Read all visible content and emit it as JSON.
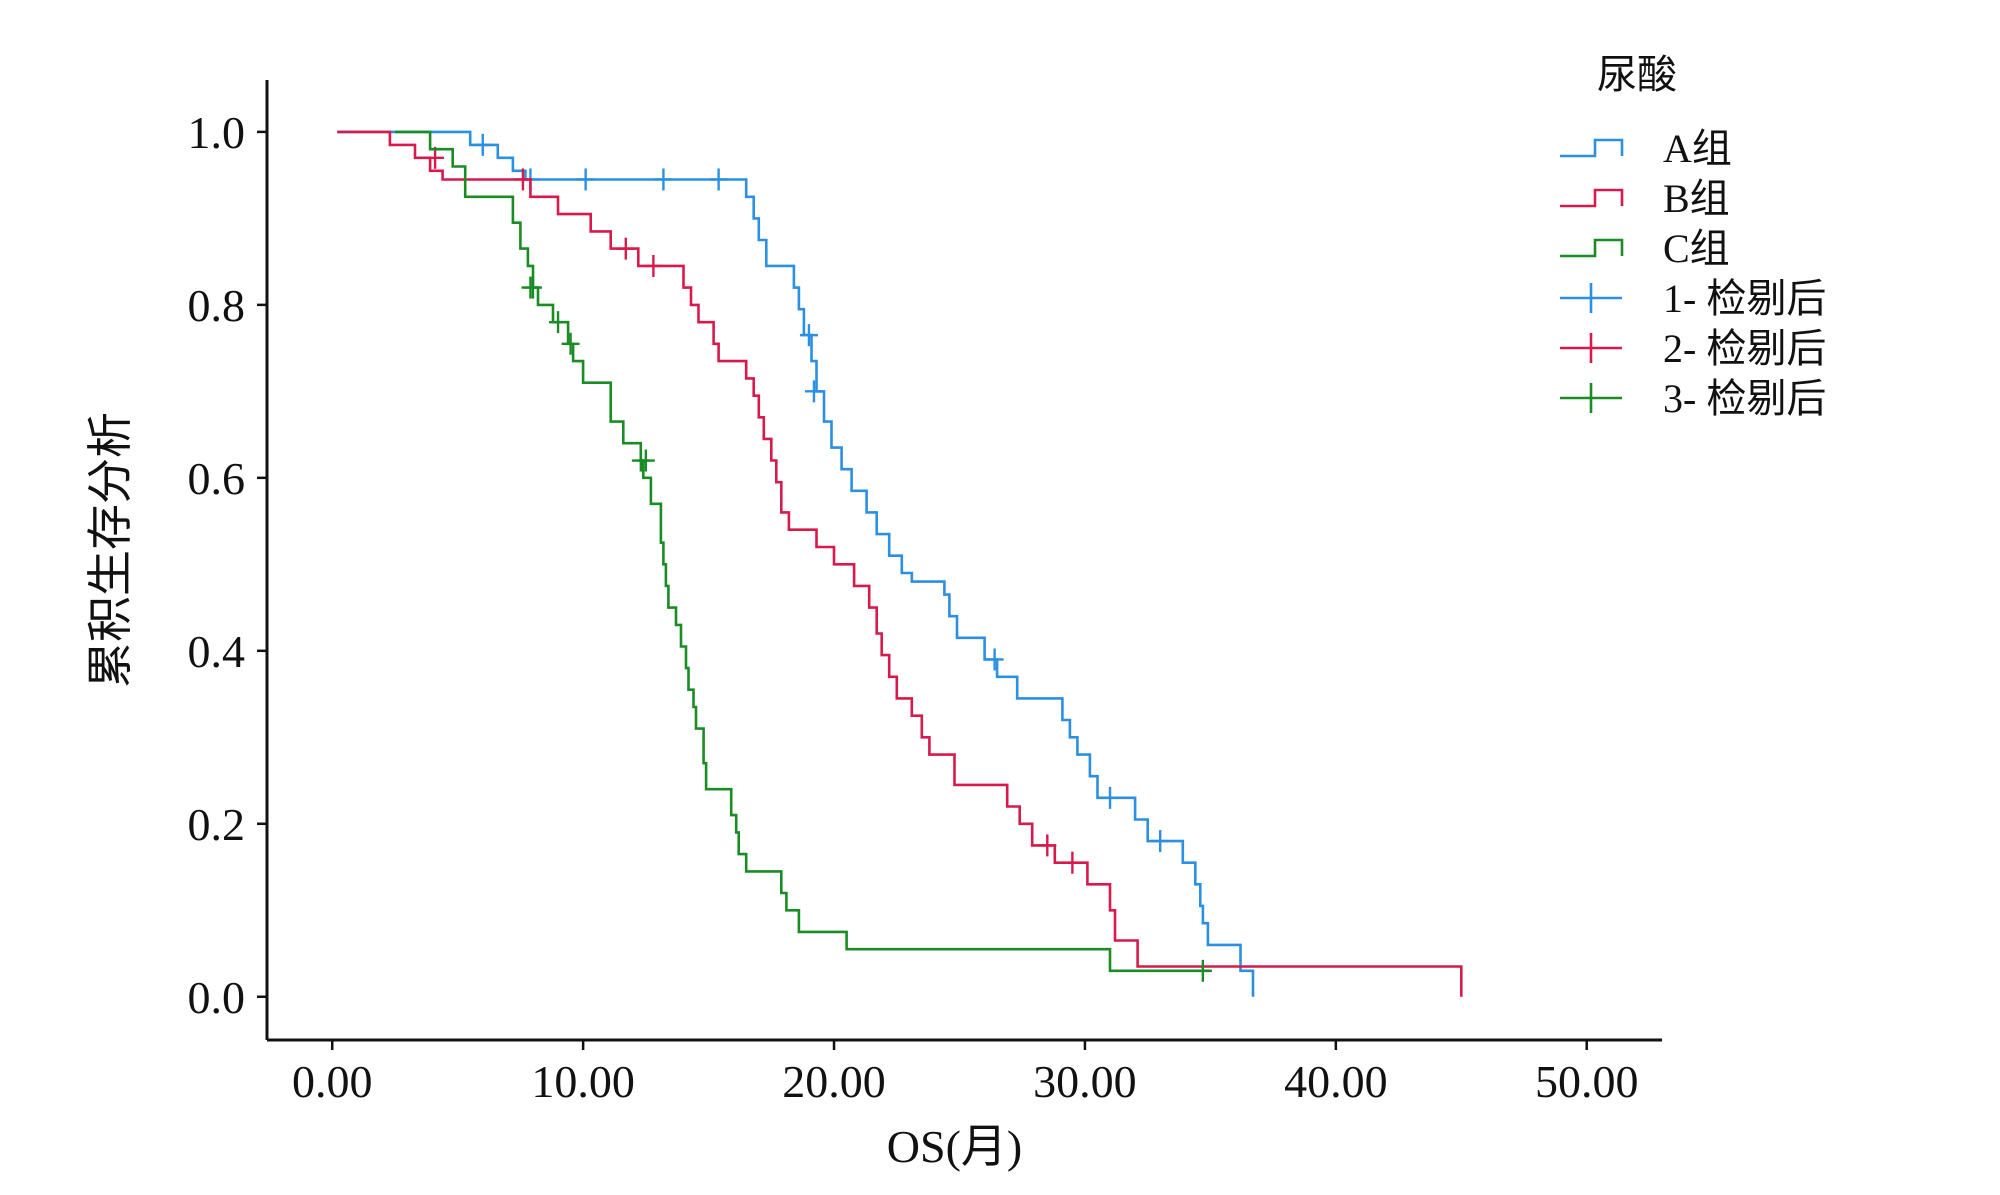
{
  "chart_data": {
    "type": "line",
    "subtype": "kaplan-meier-step",
    "title": "",
    "xlabel": "OS(月)",
    "ylabel": "累积生存分析",
    "xlim": [
      -2.6,
      53.0
    ],
    "ylim": [
      -0.05,
      1.06
    ],
    "x_ticks": [
      0,
      10,
      20,
      30,
      40,
      50
    ],
    "x_tick_labels": [
      "0.00",
      "10.00",
      "20.00",
      "30.00",
      "40.00",
      "50.00"
    ],
    "y_ticks": [
      0,
      0.2,
      0.4,
      0.6,
      0.8,
      1.0
    ],
    "y_tick_labels": [
      "0.0",
      "0.2",
      "0.4",
      "0.6",
      "0.8",
      "1.0"
    ],
    "grid": false,
    "legend": {
      "title": "尿酸",
      "placement": "top-right",
      "entries": [
        {
          "label": "A组",
          "kind": "step",
          "color": "#2b8fe3"
        },
        {
          "label": "B组",
          "kind": "step",
          "color": "#d7194c"
        },
        {
          "label": "C组",
          "kind": "step",
          "color": "#1a8c24"
        },
        {
          "label": "1- 检剔后",
          "kind": "censor",
          "color": "#2b8fe3"
        },
        {
          "label": "2- 检剔后",
          "kind": "censor",
          "color": "#d7194c"
        },
        {
          "label": "3- 检剔后",
          "kind": "censor",
          "color": "#1a8c24"
        }
      ]
    },
    "series": [
      {
        "name": "A组",
        "color": "#2b8fe3",
        "points": [
          [
            0.2,
            1.0
          ],
          [
            5.5,
            1.0
          ],
          [
            5.5,
            0.985
          ],
          [
            6.6,
            0.985
          ],
          [
            6.6,
            0.97
          ],
          [
            7.2,
            0.97
          ],
          [
            7.2,
            0.955
          ],
          [
            7.7,
            0.955
          ],
          [
            7.7,
            0.945
          ],
          [
            16.5,
            0.945
          ],
          [
            16.5,
            0.925
          ],
          [
            16.8,
            0.925
          ],
          [
            16.8,
            0.9
          ],
          [
            17.0,
            0.9
          ],
          [
            17.0,
            0.875
          ],
          [
            17.3,
            0.875
          ],
          [
            17.3,
            0.845
          ],
          [
            18.4,
            0.845
          ],
          [
            18.4,
            0.82
          ],
          [
            18.6,
            0.82
          ],
          [
            18.6,
            0.795
          ],
          [
            18.8,
            0.795
          ],
          [
            18.8,
            0.765
          ],
          [
            19.1,
            0.765
          ],
          [
            19.1,
            0.735
          ],
          [
            19.3,
            0.735
          ],
          [
            19.3,
            0.7
          ],
          [
            19.6,
            0.7
          ],
          [
            19.6,
            0.665
          ],
          [
            19.9,
            0.665
          ],
          [
            19.9,
            0.635
          ],
          [
            20.3,
            0.635
          ],
          [
            20.3,
            0.61
          ],
          [
            20.7,
            0.61
          ],
          [
            20.7,
            0.585
          ],
          [
            21.3,
            0.585
          ],
          [
            21.3,
            0.56
          ],
          [
            21.7,
            0.56
          ],
          [
            21.7,
            0.535
          ],
          [
            22.2,
            0.535
          ],
          [
            22.2,
            0.51
          ],
          [
            22.7,
            0.51
          ],
          [
            22.7,
            0.49
          ],
          [
            23.1,
            0.49
          ],
          [
            23.1,
            0.48
          ],
          [
            24.4,
            0.48
          ],
          [
            24.4,
            0.465
          ],
          [
            24.6,
            0.465
          ],
          [
            24.6,
            0.44
          ],
          [
            24.9,
            0.44
          ],
          [
            24.9,
            0.415
          ],
          [
            26.0,
            0.415
          ],
          [
            26.0,
            0.39
          ],
          [
            26.5,
            0.39
          ],
          [
            26.5,
            0.37
          ],
          [
            27.3,
            0.37
          ],
          [
            27.3,
            0.345
          ],
          [
            29.1,
            0.345
          ],
          [
            29.1,
            0.32
          ],
          [
            29.4,
            0.32
          ],
          [
            29.4,
            0.3
          ],
          [
            29.7,
            0.3
          ],
          [
            29.7,
            0.28
          ],
          [
            30.2,
            0.28
          ],
          [
            30.2,
            0.255
          ],
          [
            30.5,
            0.255
          ],
          [
            30.5,
            0.23
          ],
          [
            32.0,
            0.23
          ],
          [
            32.0,
            0.205
          ],
          [
            32.5,
            0.205
          ],
          [
            32.5,
            0.18
          ],
          [
            33.9,
            0.18
          ],
          [
            33.9,
            0.155
          ],
          [
            34.4,
            0.155
          ],
          [
            34.4,
            0.13
          ],
          [
            34.6,
            0.13
          ],
          [
            34.6,
            0.105
          ],
          [
            34.7,
            0.105
          ],
          [
            34.7,
            0.085
          ],
          [
            34.9,
            0.085
          ],
          [
            34.9,
            0.06
          ],
          [
            36.2,
            0.06
          ],
          [
            36.2,
            0.03
          ],
          [
            36.7,
            0.03
          ],
          [
            36.7,
            0.0
          ]
        ],
        "censored": [
          [
            6.0,
            0.985
          ],
          [
            7.9,
            0.945
          ],
          [
            10.1,
            0.945
          ],
          [
            13.2,
            0.945
          ],
          [
            15.4,
            0.945
          ],
          [
            19.0,
            0.765
          ],
          [
            19.2,
            0.7
          ],
          [
            26.4,
            0.39
          ],
          [
            31.0,
            0.23
          ],
          [
            33.0,
            0.18
          ]
        ]
      },
      {
        "name": "B组",
        "color": "#d7194c",
        "points": [
          [
            0.2,
            1.0
          ],
          [
            2.3,
            1.0
          ],
          [
            2.3,
            0.985
          ],
          [
            3.3,
            0.985
          ],
          [
            3.3,
            0.97
          ],
          [
            3.9,
            0.97
          ],
          [
            3.9,
            0.955
          ],
          [
            4.4,
            0.955
          ],
          [
            4.4,
            0.945
          ],
          [
            7.9,
            0.945
          ],
          [
            7.9,
            0.925
          ],
          [
            9.0,
            0.925
          ],
          [
            9.0,
            0.905
          ],
          [
            10.3,
            0.905
          ],
          [
            10.3,
            0.885
          ],
          [
            11.1,
            0.885
          ],
          [
            11.1,
            0.865
          ],
          [
            12.2,
            0.865
          ],
          [
            12.2,
            0.845
          ],
          [
            14.0,
            0.845
          ],
          [
            14.0,
            0.82
          ],
          [
            14.3,
            0.82
          ],
          [
            14.3,
            0.8
          ],
          [
            14.6,
            0.8
          ],
          [
            14.6,
            0.78
          ],
          [
            15.2,
            0.78
          ],
          [
            15.2,
            0.755
          ],
          [
            15.4,
            0.755
          ],
          [
            15.4,
            0.735
          ],
          [
            16.5,
            0.735
          ],
          [
            16.5,
            0.715
          ],
          [
            16.8,
            0.715
          ],
          [
            16.8,
            0.695
          ],
          [
            17.0,
            0.695
          ],
          [
            17.0,
            0.67
          ],
          [
            17.2,
            0.67
          ],
          [
            17.2,
            0.645
          ],
          [
            17.5,
            0.645
          ],
          [
            17.5,
            0.62
          ],
          [
            17.7,
            0.62
          ],
          [
            17.7,
            0.595
          ],
          [
            17.9,
            0.595
          ],
          [
            17.9,
            0.56
          ],
          [
            18.2,
            0.56
          ],
          [
            18.2,
            0.54
          ],
          [
            19.3,
            0.54
          ],
          [
            19.3,
            0.52
          ],
          [
            20.0,
            0.52
          ],
          [
            20.0,
            0.5
          ],
          [
            20.8,
            0.5
          ],
          [
            20.8,
            0.475
          ],
          [
            21.4,
            0.475
          ],
          [
            21.4,
            0.45
          ],
          [
            21.7,
            0.45
          ],
          [
            21.7,
            0.42
          ],
          [
            21.9,
            0.42
          ],
          [
            21.9,
            0.395
          ],
          [
            22.2,
            0.395
          ],
          [
            22.2,
            0.37
          ],
          [
            22.5,
            0.37
          ],
          [
            22.5,
            0.345
          ],
          [
            23.1,
            0.345
          ],
          [
            23.1,
            0.325
          ],
          [
            23.5,
            0.325
          ],
          [
            23.5,
            0.3
          ],
          [
            23.8,
            0.3
          ],
          [
            23.8,
            0.28
          ],
          [
            24.8,
            0.28
          ],
          [
            24.8,
            0.245
          ],
          [
            26.9,
            0.245
          ],
          [
            26.9,
            0.22
          ],
          [
            27.4,
            0.22
          ],
          [
            27.4,
            0.2
          ],
          [
            27.9,
            0.2
          ],
          [
            27.9,
            0.175
          ],
          [
            28.8,
            0.175
          ],
          [
            28.8,
            0.155
          ],
          [
            30.1,
            0.155
          ],
          [
            30.1,
            0.13
          ],
          [
            31.0,
            0.13
          ],
          [
            31.0,
            0.1
          ],
          [
            31.2,
            0.1
          ],
          [
            31.2,
            0.065
          ],
          [
            32.1,
            0.065
          ],
          [
            32.1,
            0.035
          ],
          [
            45.0,
            0.035
          ],
          [
            45.0,
            0.0
          ]
        ],
        "censored": [
          [
            4.1,
            0.97
          ],
          [
            7.6,
            0.945
          ],
          [
            11.7,
            0.865
          ],
          [
            12.8,
            0.845
          ],
          [
            28.5,
            0.175
          ],
          [
            29.5,
            0.155
          ]
        ]
      },
      {
        "name": "C组",
        "color": "#1a8c24",
        "points": [
          [
            2.5,
            1.0
          ],
          [
            3.9,
            1.0
          ],
          [
            3.9,
            0.98
          ],
          [
            4.8,
            0.98
          ],
          [
            4.8,
            0.96
          ],
          [
            5.3,
            0.96
          ],
          [
            5.3,
            0.925
          ],
          [
            7.2,
            0.925
          ],
          [
            7.2,
            0.895
          ],
          [
            7.5,
            0.895
          ],
          [
            7.5,
            0.865
          ],
          [
            7.8,
            0.865
          ],
          [
            7.8,
            0.845
          ],
          [
            8.0,
            0.845
          ],
          [
            8.0,
            0.82
          ],
          [
            8.2,
            0.82
          ],
          [
            8.2,
            0.8
          ],
          [
            8.8,
            0.8
          ],
          [
            8.8,
            0.78
          ],
          [
            9.4,
            0.78
          ],
          [
            9.4,
            0.755
          ],
          [
            9.6,
            0.755
          ],
          [
            9.6,
            0.735
          ],
          [
            10.0,
            0.735
          ],
          [
            10.0,
            0.71
          ],
          [
            11.1,
            0.71
          ],
          [
            11.1,
            0.665
          ],
          [
            11.6,
            0.665
          ],
          [
            11.6,
            0.64
          ],
          [
            12.3,
            0.64
          ],
          [
            12.3,
            0.62
          ],
          [
            12.4,
            0.62
          ],
          [
            12.4,
            0.6
          ],
          [
            12.7,
            0.6
          ],
          [
            12.7,
            0.57
          ],
          [
            13.1,
            0.57
          ],
          [
            13.1,
            0.525
          ],
          [
            13.2,
            0.525
          ],
          [
            13.2,
            0.5
          ],
          [
            13.3,
            0.5
          ],
          [
            13.3,
            0.475
          ],
          [
            13.4,
            0.475
          ],
          [
            13.4,
            0.45
          ],
          [
            13.7,
            0.45
          ],
          [
            13.7,
            0.43
          ],
          [
            13.9,
            0.43
          ],
          [
            13.9,
            0.405
          ],
          [
            14.1,
            0.405
          ],
          [
            14.1,
            0.38
          ],
          [
            14.2,
            0.38
          ],
          [
            14.2,
            0.355
          ],
          [
            14.4,
            0.355
          ],
          [
            14.4,
            0.335
          ],
          [
            14.5,
            0.335
          ],
          [
            14.5,
            0.31
          ],
          [
            14.8,
            0.31
          ],
          [
            14.8,
            0.27
          ],
          [
            14.9,
            0.27
          ],
          [
            14.9,
            0.24
          ],
          [
            15.9,
            0.24
          ],
          [
            15.9,
            0.21
          ],
          [
            16.1,
            0.21
          ],
          [
            16.1,
            0.19
          ],
          [
            16.2,
            0.19
          ],
          [
            16.2,
            0.165
          ],
          [
            16.5,
            0.165
          ],
          [
            16.5,
            0.145
          ],
          [
            17.9,
            0.145
          ],
          [
            17.9,
            0.12
          ],
          [
            18.1,
            0.12
          ],
          [
            18.1,
            0.1
          ],
          [
            18.6,
            0.1
          ],
          [
            18.6,
            0.075
          ],
          [
            20.5,
            0.075
          ],
          [
            20.5,
            0.055
          ],
          [
            31.0,
            0.055
          ],
          [
            31.0,
            0.03
          ],
          [
            35.0,
            0.03
          ]
        ],
        "censored": [
          [
            7.9,
            0.82
          ],
          [
            8.0,
            0.82
          ],
          [
            9.0,
            0.78
          ],
          [
            9.5,
            0.755
          ],
          [
            12.3,
            0.62
          ],
          [
            12.5,
            0.62
          ],
          [
            34.7,
            0.03
          ]
        ]
      }
    ]
  }
}
